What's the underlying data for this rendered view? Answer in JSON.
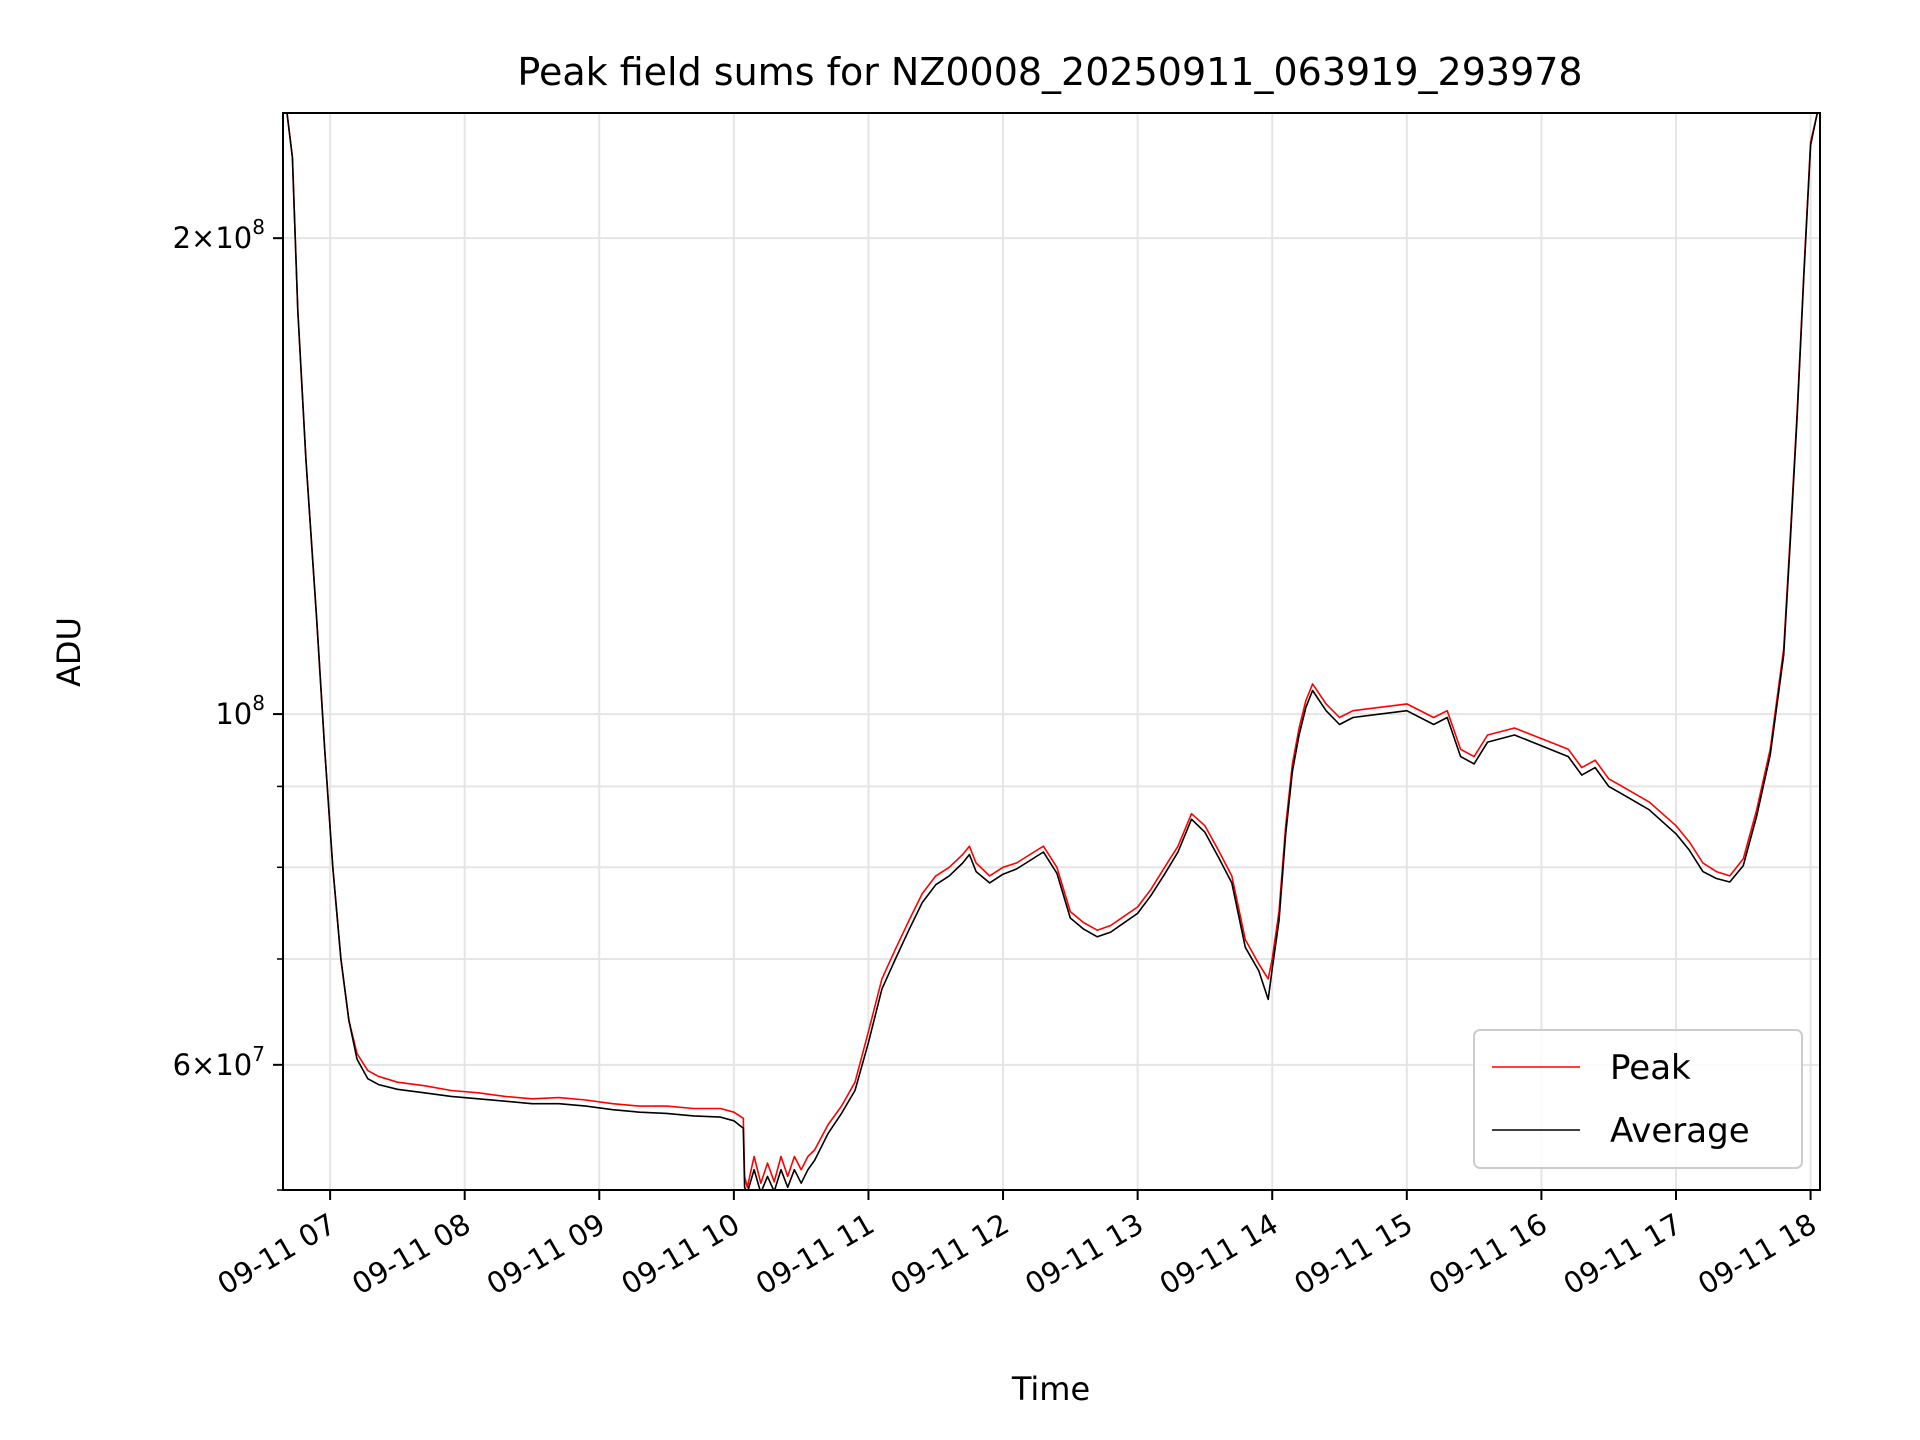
{
  "chart_data": {
    "type": "line",
    "title": "Peak field sums for NZ0008_20250911_063919_293978",
    "xlabel": "Time",
    "ylabel": "ADU",
    "x_tick_labels": [
      "09-11 07",
      "09-11 08",
      "09-11 09",
      "09-11 10",
      "09-11 11",
      "09-11 12",
      "09-11 13",
      "09-11 14",
      "09-11 15",
      "09-11 16",
      "09-11 17",
      "09-11 18"
    ],
    "x_tick_hours": [
      7,
      8,
      9,
      10,
      11,
      12,
      13,
      14,
      15,
      16,
      17,
      18
    ],
    "x_unit": "hour of 2025-09-11",
    "xlim": [
      6.65,
      18.07
    ],
    "y_scale": "log",
    "ylim": [
      50000000,
      240000000
    ],
    "y_tick_labels": [
      {
        "value": 200000000,
        "mantissa": "2",
        "exp": "8"
      },
      {
        "value": 100000000,
        "mantissa": "",
        "exp": "8"
      },
      {
        "value": 60000000,
        "mantissa": "6",
        "exp": "7"
      }
    ],
    "y_minor_ticks": [
      50000000,
      70000000,
      80000000,
      90000000
    ],
    "grid": true,
    "legend_position": "lower-right",
    "series": [
      {
        "name": "Peak",
        "color": "#ff0000",
        "x": [
          6.68,
          6.72,
          6.76,
          6.82,
          6.9,
          6.96,
          7.02,
          7.08,
          7.14,
          7.2,
          7.28,
          7.36,
          7.5,
          7.7,
          7.9,
          8.1,
          8.3,
          8.5,
          8.7,
          8.9,
          9.1,
          9.3,
          9.5,
          9.7,
          9.9,
          10.0,
          10.07,
          10.08,
          10.1,
          10.15,
          10.2,
          10.25,
          10.3,
          10.35,
          10.4,
          10.45,
          10.5,
          10.55,
          10.6,
          10.7,
          10.8,
          10.9,
          11.0,
          11.1,
          11.2,
          11.3,
          11.4,
          11.5,
          11.6,
          11.7,
          11.75,
          11.8,
          11.9,
          12.0,
          12.1,
          12.2,
          12.3,
          12.4,
          12.5,
          12.6,
          12.7,
          12.8,
          12.9,
          13.0,
          13.1,
          13.2,
          13.3,
          13.4,
          13.5,
          13.6,
          13.7,
          13.8,
          13.9,
          13.97,
          14.0,
          14.05,
          14.1,
          14.15,
          14.2,
          14.25,
          14.3,
          14.4,
          14.5,
          14.6,
          14.8,
          15.0,
          15.2,
          15.3,
          15.4,
          15.5,
          15.6,
          15.8,
          16.0,
          16.2,
          16.3,
          16.4,
          16.5,
          16.6,
          16.8,
          17.0,
          17.1,
          17.2,
          17.3,
          17.4,
          17.5,
          17.6,
          17.7,
          17.8,
          17.85,
          17.9,
          17.95,
          18.0,
          18.05
        ],
        "y": [
          240000000,
          225000000,
          180000000,
          145000000,
          115000000,
          95000000,
          80000000,
          70000000,
          64000000,
          61000000,
          59500000,
          59000000,
          58500000,
          58200000,
          57800000,
          57600000,
          57300000,
          57100000,
          57200000,
          57000000,
          56700000,
          56500000,
          56500000,
          56300000,
          56300000,
          56000000,
          55500000,
          51000000,
          50200000,
          52500000,
          50500000,
          52000000,
          50600000,
          52500000,
          51000000,
          52500000,
          51500000,
          52500000,
          53000000,
          55000000,
          56500000,
          58500000,
          63000000,
          68000000,
          71000000,
          74000000,
          77000000,
          79000000,
          80000000,
          81500000,
          82500000,
          80500000,
          79000000,
          80000000,
          80500000,
          81500000,
          82500000,
          80000000,
          75000000,
          73800000,
          73000000,
          73500000,
          74500000,
          75500000,
          77500000,
          80000000,
          82500000,
          86500000,
          85000000,
          82000000,
          79000000,
          72000000,
          69500000,
          68000000,
          70000000,
          75000000,
          85000000,
          93000000,
          98000000,
          102000000,
          104500000,
          101500000,
          99500000,
          100500000,
          101000000,
          101500000,
          99500000,
          100500000,
          95000000,
          94000000,
          97000000,
          98000000,
          96500000,
          95000000,
          92500000,
          93500000,
          91000000,
          90000000,
          88000000,
          85000000,
          83000000,
          80500000,
          79500000,
          79000000,
          81000000,
          87000000,
          95000000,
          110000000,
          130000000,
          155000000,
          190000000,
          230000000,
          240000000
        ]
      },
      {
        "name": "Average",
        "color": "#000000",
        "x": [
          6.68,
          6.72,
          6.76,
          6.82,
          6.9,
          6.96,
          7.02,
          7.08,
          7.14,
          7.2,
          7.28,
          7.36,
          7.5,
          7.7,
          7.9,
          8.1,
          8.3,
          8.5,
          8.7,
          8.9,
          9.1,
          9.3,
          9.5,
          9.7,
          9.9,
          10.0,
          10.07,
          10.08,
          10.1,
          10.15,
          10.2,
          10.25,
          10.3,
          10.35,
          10.4,
          10.45,
          10.5,
          10.55,
          10.6,
          10.7,
          10.8,
          10.9,
          11.0,
          11.1,
          11.2,
          11.3,
          11.4,
          11.5,
          11.6,
          11.7,
          11.75,
          11.8,
          11.9,
          12.0,
          12.1,
          12.2,
          12.3,
          12.4,
          12.5,
          12.6,
          12.7,
          12.8,
          12.9,
          13.0,
          13.1,
          13.2,
          13.3,
          13.4,
          13.5,
          13.6,
          13.7,
          13.8,
          13.9,
          13.97,
          14.0,
          14.05,
          14.1,
          14.15,
          14.2,
          14.25,
          14.3,
          14.4,
          14.5,
          14.6,
          14.8,
          15.0,
          15.2,
          15.3,
          15.4,
          15.5,
          15.6,
          15.8,
          16.0,
          16.2,
          16.3,
          16.4,
          16.5,
          16.6,
          16.8,
          17.0,
          17.1,
          17.2,
          17.3,
          17.4,
          17.5,
          17.6,
          17.7,
          17.8,
          17.85,
          17.9,
          17.95,
          18.0,
          18.05
        ],
        "y": [
          240000000,
          225000000,
          180000000,
          145000000,
          115000000,
          95000000,
          80000000,
          70000000,
          64000000,
          60500000,
          58800000,
          58300000,
          57900000,
          57600000,
          57300000,
          57100000,
          56900000,
          56700000,
          56700000,
          56500000,
          56200000,
          56000000,
          55900000,
          55700000,
          55600000,
          55300000,
          54700000,
          50200000,
          49800000,
          51500000,
          49800000,
          51000000,
          49900000,
          51500000,
          50200000,
          51500000,
          50500000,
          51500000,
          52200000,
          54300000,
          55900000,
          57800000,
          62000000,
          67000000,
          70000000,
          73000000,
          76000000,
          78000000,
          79000000,
          80500000,
          81500000,
          79500000,
          78200000,
          79200000,
          79800000,
          80800000,
          81800000,
          79300000,
          74300000,
          73100000,
          72300000,
          72800000,
          73800000,
          74800000,
          76800000,
          79200000,
          81800000,
          85800000,
          84200000,
          81200000,
          78200000,
          71200000,
          68800000,
          66000000,
          69000000,
          74000000,
          84000000,
          92000000,
          97000000,
          101000000,
          103500000,
          100500000,
          98500000,
          99500000,
          100000000,
          100500000,
          98500000,
          99500000,
          94000000,
          93000000,
          96000000,
          97000000,
          95500000,
          94000000,
          91500000,
          92500000,
          90000000,
          89000000,
          87000000,
          84000000,
          82000000,
          79500000,
          78700000,
          78300000,
          80200000,
          86200000,
          94200000,
          109000000,
          129000000,
          154000000,
          189000000,
          229000000,
          240000000
        ]
      }
    ]
  }
}
